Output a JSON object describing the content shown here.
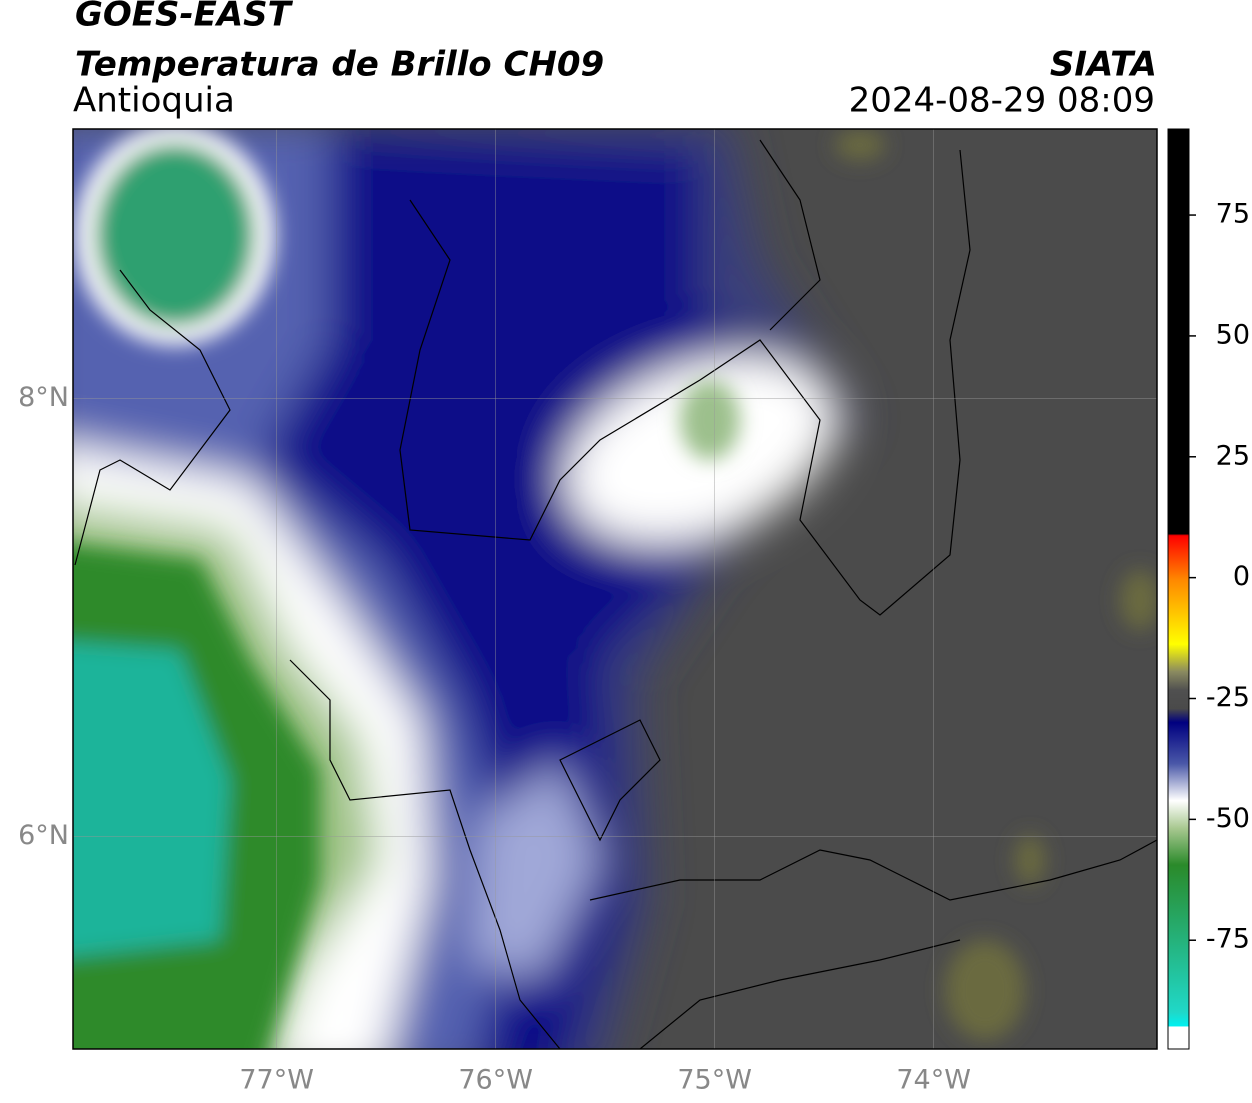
{
  "header": {
    "title": "GOES-EAST",
    "subtitle": "Temperatura de Brillo CH09",
    "region": "Antioquia",
    "source": "SIATA",
    "datetime": "2024-08-29 08:09"
  },
  "map": {
    "xlim": [
      -77.93,
      -72.98
    ],
    "ylim": [
      5.03,
      9.23
    ],
    "xticks": [
      {
        "value": -77,
        "label": "77°W"
      },
      {
        "value": -76,
        "label": "76°W"
      },
      {
        "value": -75,
        "label": "75°W"
      },
      {
        "value": -74,
        "label": "74°W"
      }
    ],
    "yticks": [
      {
        "value": 6,
        "label": "6°N"
      },
      {
        "value": 8,
        "label": "8°N"
      }
    ],
    "grid": true
  },
  "colorbar": {
    "lim": [
      -97.5,
      92.8
    ],
    "ticks": [
      -75,
      -50,
      -25,
      0,
      25,
      50,
      75
    ]
  }
}
